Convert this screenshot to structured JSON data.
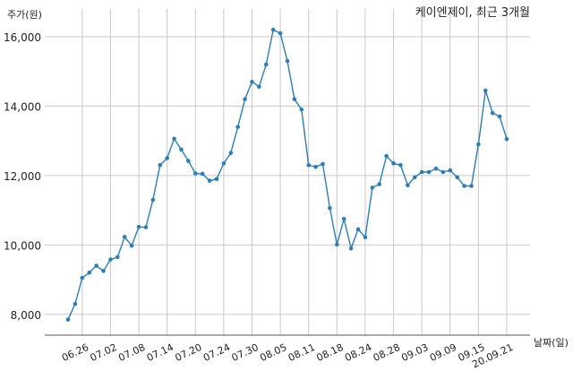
{
  "chart_data": {
    "type": "line",
    "title": "케이엔제이, 최근 3개월",
    "ylabel": "주가(원)",
    "xlabel": "날짜(일)",
    "ylim": [
      7400,
      16800
    ],
    "yticks": [
      8000,
      10000,
      12000,
      14000,
      16000
    ],
    "ytick_labels": [
      "8,000",
      "10,000",
      "12,000",
      "14,000",
      "16,000"
    ],
    "xtick_labels": [
      "06.26",
      "07.02",
      "07.08",
      "07.14",
      "07.20",
      "07.24",
      "07.30",
      "08.05",
      "08.11",
      "08.18",
      "08.24",
      "08.28",
      "09.03",
      "09.09",
      "09.15",
      "20.09.21"
    ],
    "xtick_index": [
      2,
      6,
      10,
      14,
      18,
      22,
      26,
      30,
      34,
      38,
      42,
      46,
      50,
      54,
      58,
      62
    ],
    "grid": true,
    "line_color": "#2e7db5",
    "series": [
      {
        "values": [
          7850,
          8300,
          9050,
          9200,
          9400,
          9250,
          9580,
          9650,
          10230,
          9980,
          10520,
          10510,
          11300,
          12300,
          12500,
          13060,
          12750,
          12420,
          12060,
          12050,
          11850,
          11900,
          12350,
          12650,
          13400,
          14200,
          14700,
          14560,
          15200,
          16200,
          16100,
          15300,
          14200,
          13900,
          12300,
          12250,
          12330,
          11060,
          10010,
          10750,
          9900,
          10450,
          10220,
          11650,
          11750,
          12560,
          12350,
          12300,
          11720,
          11950,
          12100,
          12100,
          12200,
          12100,
          12150,
          11950,
          11700,
          11700,
          12900,
          14450,
          13800,
          13700,
          13050
        ]
      }
    ]
  }
}
